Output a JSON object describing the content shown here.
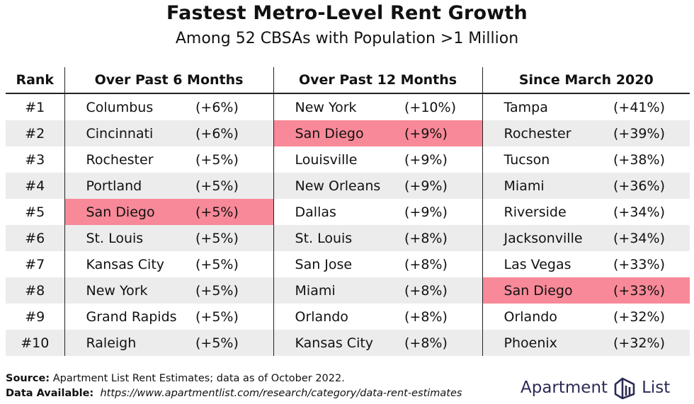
{
  "title": "Fastest Metro-Level Rent Growth",
  "subtitle": "Among 52 CBSAs with Population >1 Million",
  "headers": {
    "rank": "Rank",
    "col1": "Over Past 6 Months",
    "col2": "Over Past 12 Months",
    "col3": "Since March 2020"
  },
  "highlight_color": "#f88998",
  "chart_data": {
    "type": "table",
    "title": "Fastest Metro-Level Rent Growth",
    "subtitle": "Among 52 CBSAs with Population >1 Million",
    "columns": [
      "Rank",
      "Over Past 6 Months",
      "Over Past 12 Months",
      "Since March 2020"
    ],
    "highlighted_city": "San Diego",
    "rows": [
      {
        "rank": "#1",
        "c1_city": "Columbus",
        "c1_pct": "(+6%)",
        "c2_city": "New York",
        "c2_pct": "(+10%)",
        "c3_city": "Tampa",
        "c3_pct": "(+41%)"
      },
      {
        "rank": "#2",
        "c1_city": "Cincinnati",
        "c1_pct": "(+6%)",
        "c2_city": "San Diego",
        "c2_pct": "(+9%)",
        "c3_city": "Rochester",
        "c3_pct": "(+39%)"
      },
      {
        "rank": "#3",
        "c1_city": "Rochester",
        "c1_pct": "(+5%)",
        "c2_city": "Louisville",
        "c2_pct": "(+9%)",
        "c3_city": "Tucson",
        "c3_pct": "(+38%)"
      },
      {
        "rank": "#4",
        "c1_city": "Portland",
        "c1_pct": "(+5%)",
        "c2_city": "New Orleans",
        "c2_pct": "(+9%)",
        "c3_city": "Miami",
        "c3_pct": "(+36%)"
      },
      {
        "rank": "#5",
        "c1_city": "San Diego",
        "c1_pct": "(+5%)",
        "c2_city": "Dallas",
        "c2_pct": "(+9%)",
        "c3_city": "Riverside",
        "c3_pct": "(+34%)"
      },
      {
        "rank": "#6",
        "c1_city": "St. Louis",
        "c1_pct": "(+5%)",
        "c2_city": "St. Louis",
        "c2_pct": "(+8%)",
        "c3_city": "Jacksonville",
        "c3_pct": "(+34%)"
      },
      {
        "rank": "#7",
        "c1_city": "Kansas City",
        "c1_pct": "(+5%)",
        "c2_city": "San Jose",
        "c2_pct": "(+8%)",
        "c3_city": "Las Vegas",
        "c3_pct": "(+33%)"
      },
      {
        "rank": "#8",
        "c1_city": "New York",
        "c1_pct": "(+5%)",
        "c2_city": "Miami",
        "c2_pct": "(+8%)",
        "c3_city": "San Diego",
        "c3_pct": "(+33%)"
      },
      {
        "rank": "#9",
        "c1_city": "Grand Rapids",
        "c1_pct": "(+5%)",
        "c2_city": "Orlando",
        "c2_pct": "(+8%)",
        "c3_city": "Orlando",
        "c3_pct": "(+32%)"
      },
      {
        "rank": "#10",
        "c1_city": "Raleigh",
        "c1_pct": "(+5%)",
        "c2_city": "Kansas City",
        "c2_pct": "(+8%)",
        "c3_city": "Phoenix",
        "c3_pct": "(+32%)"
      }
    ]
  },
  "footer": {
    "source_label": "Source:",
    "source_text": " Apartment List Rent Estimates; data as of October 2022.",
    "data_label": "Data Available:",
    "data_url": "https://www.apartmentlist.com/research/category/data-rent-estimates"
  },
  "logo": {
    "word1": "Apartment",
    "word2": "List",
    "icon": "apartment-list-logo-icon"
  }
}
